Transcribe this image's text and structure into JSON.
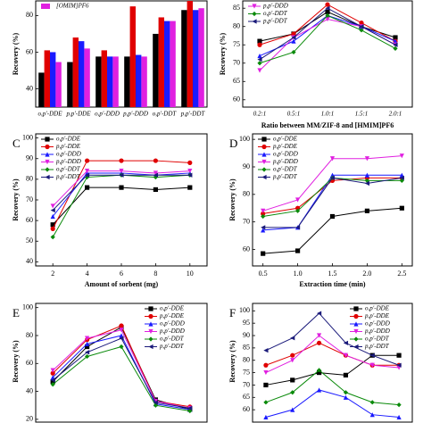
{
  "chart_data": [
    {
      "type": "bar",
      "ylabel": "Recovery (%)",
      "categories": [
        "o,p'-DDE",
        "p,p'-DDE",
        "o,p'-DDD",
        "p,p'-DDD",
        "o,p'-DDT",
        "p,p'-DDT"
      ],
      "ylim": [
        30,
        88
      ],
      "yticks": [
        40,
        60,
        80
      ],
      "legend": "upper left",
      "series": [
        {
          "color": "#000000",
          "values": [
            48.8,
            54.6,
            57.6,
            57.6,
            70,
            83
          ]
        },
        {
          "color": "#e00000",
          "values": [
            61,
            68,
            61,
            85,
            79,
            88
          ]
        },
        {
          "color": "#1a1aff",
          "values": [
            60,
            66,
            57.6,
            58.5,
            77,
            83
          ]
        },
        {
          "name": "[OMIM]PF6",
          "color": "#e020e0",
          "values": [
            54.6,
            62,
            57.6,
            57.6,
            77,
            84
          ]
        }
      ]
    },
    {
      "type": "line",
      "ylabel": "Recovery (%)",
      "xlabel": "Ratio between MM/ZIF-8 and [HMIM]PF6",
      "categories": [
        "0.2:1",
        "0.5:1",
        "1.0:1",
        "1.5:1",
        "2.0:1"
      ],
      "ylim": [
        58,
        87
      ],
      "yticks": [
        60,
        65,
        70,
        75,
        80,
        85
      ],
      "legend": "upper left",
      "series": [
        {
          "color": "#000000",
          "values": [
            76,
            78,
            84,
            80,
            77
          ]
        },
        {
          "color": "#e00000",
          "values": [
            75,
            78,
            86,
            81,
            76
          ]
        },
        {
          "color": "#1a1aff",
          "values": [
            72,
            76,
            83,
            80,
            76
          ]
        },
        {
          "name": "p,p'-DDD",
          "color": "#e020e0",
          "values": [
            68,
            77,
            82,
            80,
            75
          ]
        },
        {
          "name": "o,p'-DDT",
          "color": "#0a8a0a",
          "values": [
            70,
            73,
            83,
            79,
            74
          ]
        },
        {
          "name": "p,p'-DDT",
          "color": "#1a1a7a",
          "values": [
            71,
            77,
            85,
            80,
            75
          ]
        }
      ]
    },
    {
      "type": "line",
      "label": "C",
      "ylabel": "Recovery (%)",
      "xlabel": "Amount of sorbent (mg)",
      "x": [
        2,
        4,
        6,
        8,
        10
      ],
      "xlim": [
        1,
        11
      ],
      "xticks": [
        2,
        4,
        6,
        8,
        10
      ],
      "ylim": [
        38,
        102
      ],
      "yticks": [
        40,
        50,
        60,
        70,
        80,
        90,
        100
      ],
      "legend": "upper left",
      "series": [
        {
          "name": "o,p'-DDE",
          "color": "#000000",
          "values": [
            58,
            76,
            76,
            75,
            76
          ]
        },
        {
          "name": "p,p'-DDE",
          "color": "#e00000",
          "values": [
            56,
            89,
            89,
            89,
            88
          ]
        },
        {
          "name": "o,p'-DDD",
          "color": "#1a1aff",
          "values": [
            62,
            83,
            83,
            82,
            83
          ]
        },
        {
          "name": "p,p'-DDD",
          "color": "#e020e0",
          "values": [
            67,
            84,
            84,
            83,
            84
          ]
        },
        {
          "name": "o,p'-DDT",
          "color": "#0a8a0a",
          "values": [
            52,
            81,
            82,
            81,
            82
          ]
        },
        {
          "name": "p,p'-DDT",
          "color": "#1a1a7a",
          "values": [
            65,
            82,
            82,
            82,
            82
          ]
        }
      ]
    },
    {
      "type": "line",
      "label": "D",
      "ylabel": "Recovery (%)",
      "xlabel": "Extraction time (min)",
      "x": [
        0.5,
        1.0,
        1.5,
        2.0,
        2.5
      ],
      "xlim": [
        0.35,
        2.65
      ],
      "xticks": [
        {
          "value": 0.5,
          "label": "0.5"
        },
        {
          "value": 1,
          "label": "1.0"
        },
        {
          "value": 1.5,
          "label": "1.5"
        },
        {
          "value": 2,
          "label": "2.0"
        },
        {
          "value": 2.5,
          "label": "2.5"
        }
      ],
      "ylim": [
        54,
        102
      ],
      "yticks": [
        60,
        70,
        80,
        90,
        100
      ],
      "legend": "upper left",
      "series": [
        {
          "name": "o,p'-DDE",
          "color": "#000000",
          "values": [
            58.5,
            59.5,
            72,
            74,
            75
          ]
        },
        {
          "name": "p,p'-DDE",
          "color": "#e00000",
          "values": [
            73,
            75,
            85,
            86,
            86
          ]
        },
        {
          "name": "o,p'-DDD",
          "color": "#1a1aff",
          "values": [
            67,
            68,
            87,
            87,
            87
          ]
        },
        {
          "name": "p,p'-DDD",
          "color": "#e020e0",
          "values": [
            74,
            78,
            93,
            93,
            94
          ]
        },
        {
          "name": "o,p'-DDT",
          "color": "#0a8a0a",
          "values": [
            72,
            74,
            86,
            85,
            85
          ]
        },
        {
          "name": "p,p'-DDT",
          "color": "#1a1a7a",
          "values": [
            68,
            68,
            86,
            84,
            86
          ]
        }
      ]
    },
    {
      "type": "line",
      "label": "E",
      "ylabel": "Recovery (%)",
      "categories": [
        null,
        null,
        null,
        null,
        null
      ],
      "ylim": [
        18,
        103
      ],
      "yticks": [
        20,
        40,
        60,
        80,
        100
      ],
      "legend": "upper right",
      "series": [
        {
          "name": "o,p'-DDE",
          "color": "#000000",
          "values": [
            47,
            72,
            86,
            34,
            27
          ]
        },
        {
          "name": "p,p'-DDE",
          "color": "#e00000",
          "values": [
            53,
            77,
            87,
            33,
            29
          ]
        },
        {
          "name": "o,p'-DDD",
          "color": "#1a1aff",
          "values": [
            50,
            74,
            80,
            31,
            27
          ]
        },
        {
          "name": "p,p'-DDD",
          "color": "#e020e0",
          "values": [
            55,
            78,
            84,
            33,
            28
          ]
        },
        {
          "name": "o,p'-DDT",
          "color": "#0a8a0a",
          "values": [
            45,
            65,
            72,
            30,
            26
          ]
        },
        {
          "name": "p,p'-DDT",
          "color": "#1a1a7a",
          "values": [
            48,
            68,
            78,
            32,
            28
          ]
        }
      ]
    },
    {
      "type": "line",
      "label": "F",
      "ylabel": "Recovery (%)",
      "categories": [
        null,
        null,
        null,
        null,
        null,
        null
      ],
      "ylim": [
        55,
        103
      ],
      "yticks": [
        60,
        65,
        70,
        75,
        80,
        85,
        90,
        95,
        100
      ],
      "legend": "upper right",
      "series": [
        {
          "name": "o,p'-DDE",
          "color": "#000000",
          "values": [
            70,
            72,
            75,
            74,
            82,
            82
          ]
        },
        {
          "name": "p,p'-DDE",
          "color": "#e00000",
          "values": [
            78,
            82,
            87,
            82,
            78,
            78
          ]
        },
        {
          "name": "o,p'-DDD",
          "color": "#1a1aff",
          "values": [
            57,
            60,
            68,
            65,
            58,
            57
          ]
        },
        {
          "name": "p,p'-DDD",
          "color": "#e020e0",
          "values": [
            75,
            80,
            90,
            82,
            78,
            77
          ]
        },
        {
          "name": "o,p'-DDT",
          "color": "#0a8a0a",
          "values": [
            63,
            67,
            76,
            67,
            63,
            62
          ]
        },
        {
          "name": "p,p'-DDT",
          "color": "#1a1a7a",
          "values": [
            84,
            89,
            99,
            87,
            82,
            78
          ]
        }
      ]
    }
  ]
}
